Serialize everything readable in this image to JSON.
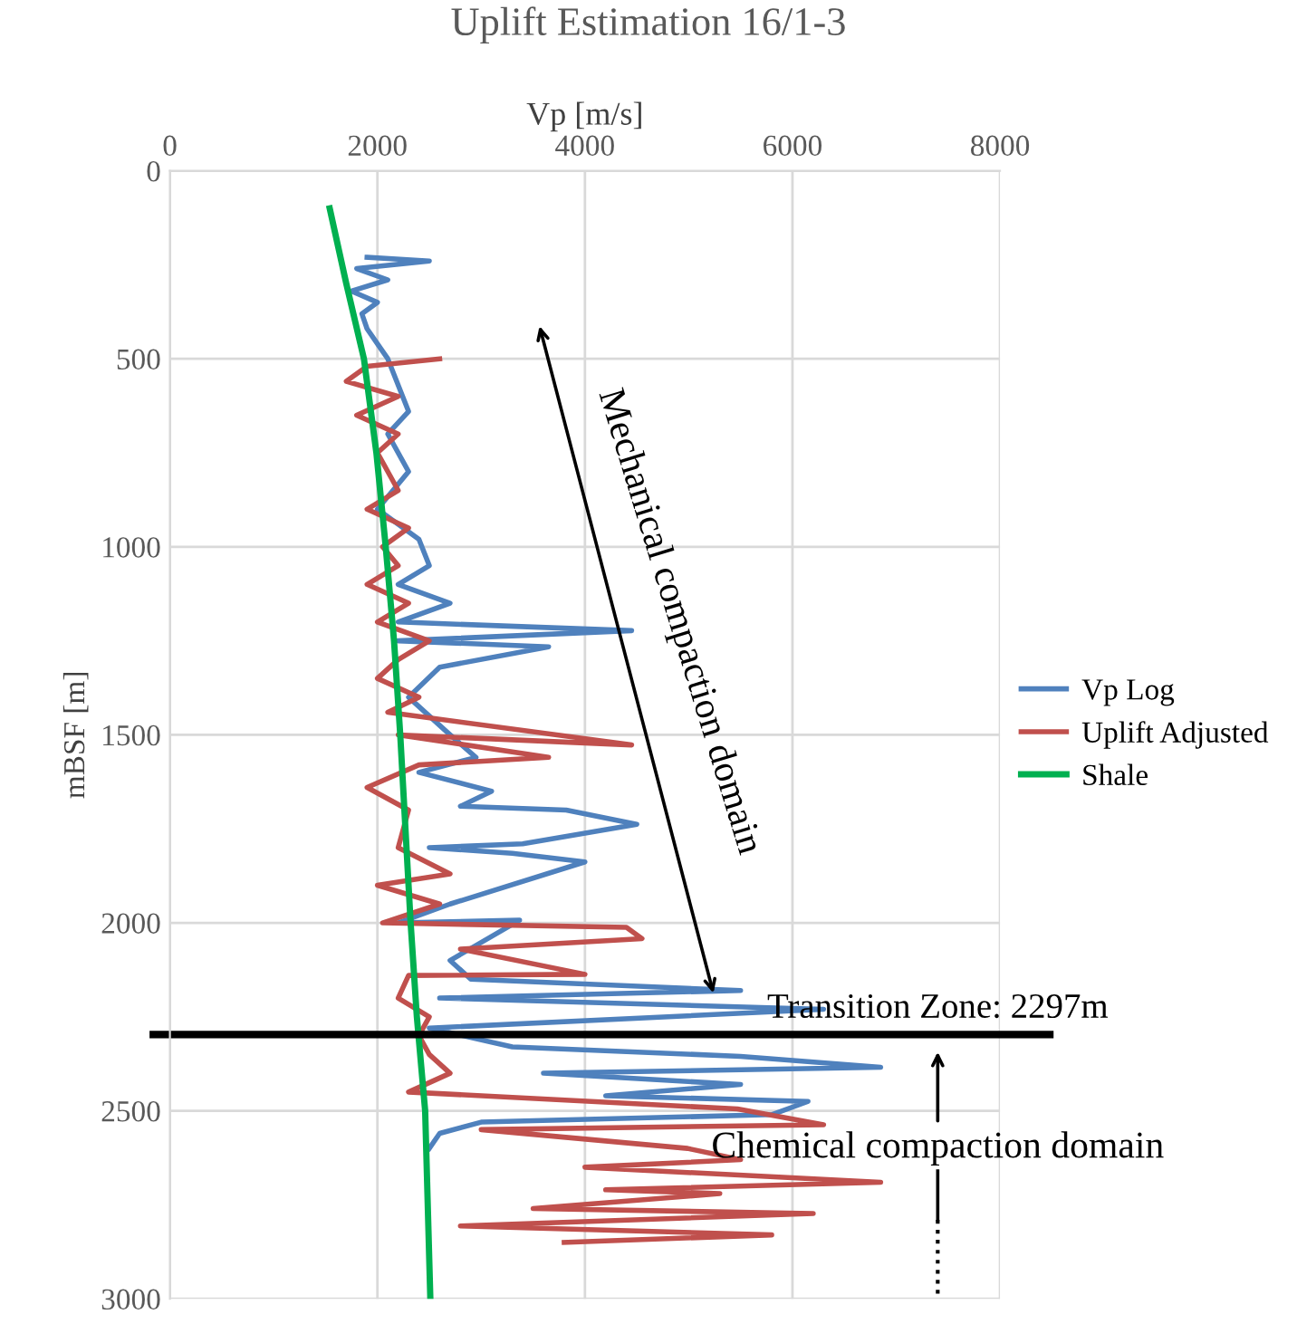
{
  "chart_data": {
    "type": "line",
    "title": "Uplift Estimation 16/1-3",
    "xlabel": "Vp [m/s]",
    "ylabel": "mBSF [m]",
    "xlim": [
      0,
      8000
    ],
    "xticks": [
      0,
      2000,
      4000,
      6000,
      8000
    ],
    "ylim": [
      3000,
      0
    ],
    "yticks": [
      0,
      500,
      1000,
      1500,
      2000,
      2500,
      3000
    ],
    "grid": true,
    "legend": "right",
    "series": [
      {
        "name": "Vp Log",
        "color": "#4f81bd",
        "x": [
          1900,
          2500,
          1800,
          2100,
          1750,
          2000,
          1850,
          1900,
          2000,
          2100,
          2300,
          2100,
          2300,
          2000,
          2400,
          2500,
          2200,
          2700,
          2200,
          4450,
          2200,
          3650,
          2600,
          2300,
          2700,
          2950,
          2400,
          3100,
          2800,
          3820,
          4500,
          3400,
          2500,
          3300,
          4000,
          2700,
          2200,
          3370,
          2700,
          2900,
          5500,
          2600,
          6300,
          2500,
          3300,
          5500,
          6850,
          3600,
          5500,
          4200,
          6150,
          5800,
          3000,
          2600,
          2500
        ],
        "values": [
          230,
          240,
          260,
          290,
          320,
          350,
          380,
          420,
          460,
          500,
          640,
          700,
          800,
          900,
          980,
          1050,
          1100,
          1150,
          1200,
          1223,
          1250,
          1266,
          1320,
          1400,
          1500,
          1560,
          1600,
          1650,
          1690,
          1700,
          1738,
          1790,
          1800,
          1815,
          1838,
          1950,
          2000,
          1993,
          2100,
          2150,
          2180,
          2200,
          2230,
          2280,
          2330,
          2355,
          2384,
          2400,
          2430,
          2460,
          2475,
          2510,
          2530,
          2560,
          2600
        ]
      },
      {
        "name": "Uplift Adjusted",
        "color": "#c0504d",
        "x": [
          2600,
          1900,
          1700,
          2200,
          1800,
          2200,
          2000,
          2100,
          2200,
          1900,
          2300,
          2050,
          2200,
          1900,
          2300,
          2000,
          2500,
          2200,
          2000,
          2400,
          2100,
          4450,
          2200,
          3650,
          2400,
          1900,
          2300,
          2200,
          2700,
          2000,
          2600,
          2050,
          4400,
          4550,
          2800,
          4000,
          2300,
          2200,
          2500,
          2400,
          2500,
          2700,
          2300,
          5470,
          6300,
          3000,
          4990,
          5500,
          4000,
          6850,
          4200,
          5300,
          3500,
          6200,
          2800,
          5800,
          3800
        ],
        "values": [
          500,
          520,
          560,
          600,
          650,
          700,
          750,
          800,
          850,
          900,
          950,
          1000,
          1050,
          1100,
          1150,
          1200,
          1250,
          1300,
          1350,
          1400,
          1440,
          1527,
          1500,
          1560,
          1580,
          1640,
          1700,
          1800,
          1870,
          1900,
          1950,
          2000,
          2012,
          2042,
          2070,
          2137,
          2140,
          2200,
          2250,
          2300,
          2350,
          2400,
          2450,
          2495,
          2537,
          2550,
          2600,
          2630,
          2650,
          2690,
          2710,
          2720,
          2760,
          2773,
          2806,
          2830,
          2850
        ]
      },
      {
        "name": "Shale",
        "color": "#00b050",
        "x": [
          1540,
          1700,
          1870,
          1990,
          2080,
          2160,
          2220,
          2270,
          2320,
          2380,
          2460,
          2510
        ],
        "values": [
          100,
          300,
          500,
          750,
          1000,
          1250,
          1500,
          1750,
          2000,
          2250,
          2500,
          3000
        ]
      }
    ],
    "ref_lines": [
      {
        "axis": "y",
        "value": 2297,
        "label": "Transition Zone: 2297m",
        "color": "#000000"
      }
    ],
    "annotations": [
      "Mechanical compaction domain",
      "Chemical compaction domain"
    ]
  }
}
